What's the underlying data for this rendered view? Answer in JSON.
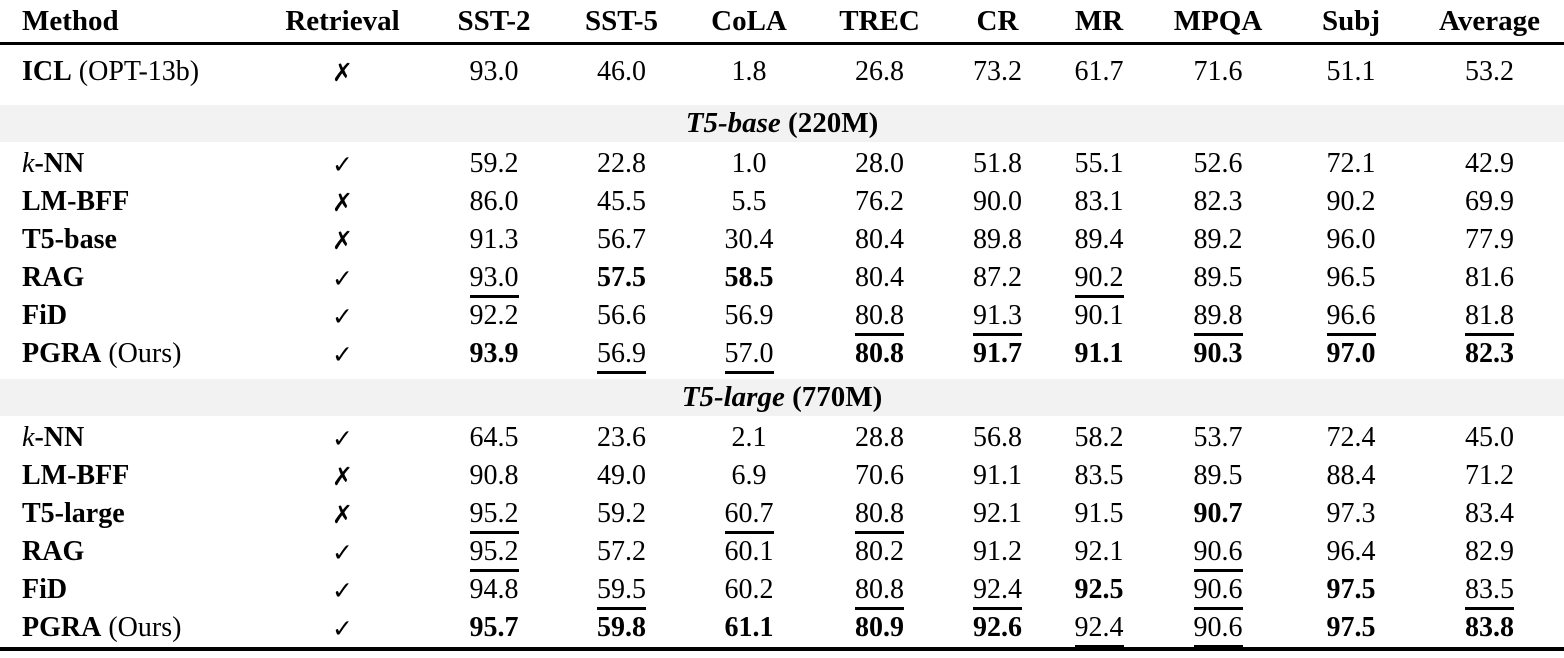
{
  "header": {
    "columns": [
      "Method",
      "Retrieval",
      "SST-2",
      "SST-5",
      "CoLA",
      "TREC",
      "CR",
      "MR",
      "MPQA",
      "Subj",
      "Average"
    ]
  },
  "symbols": {
    "retrieval_yes": "✓",
    "retrieval_no": "✗"
  },
  "colors": {
    "section_band": "#f2f2f2",
    "text": "#000000",
    "background": "#ffffff"
  },
  "rows": [
    {
      "type": "data",
      "method": [
        {
          "text": "ICL",
          "style": "bold"
        },
        {
          "text": " (OPT-13b)",
          "style": "plain"
        }
      ],
      "retrieval": "✗",
      "cells": [
        {
          "v": "93.0"
        },
        {
          "v": "46.0"
        },
        {
          "v": "1.8"
        },
        {
          "v": "26.8"
        },
        {
          "v": "73.2"
        },
        {
          "v": "61.7"
        },
        {
          "v": "71.6"
        },
        {
          "v": "51.1"
        },
        {
          "v": "53.2"
        }
      ]
    },
    {
      "type": "section",
      "parts": [
        {
          "text": "T5-base",
          "style": "bold-italic"
        },
        {
          "text": " (220M)",
          "style": "bold"
        }
      ]
    },
    {
      "type": "data",
      "method": [
        {
          "text": "k",
          "style": "italic"
        },
        {
          "text": "-NN",
          "style": "bold"
        }
      ],
      "retrieval": "✓",
      "cells": [
        {
          "v": "59.2"
        },
        {
          "v": "22.8"
        },
        {
          "v": "1.0"
        },
        {
          "v": "28.0"
        },
        {
          "v": "51.8"
        },
        {
          "v": "55.1"
        },
        {
          "v": "52.6"
        },
        {
          "v": "72.1"
        },
        {
          "v": "42.9"
        }
      ]
    },
    {
      "type": "data",
      "method": [
        {
          "text": "LM-BFF",
          "style": "bold"
        }
      ],
      "retrieval": "✗",
      "cells": [
        {
          "v": "86.0"
        },
        {
          "v": "45.5"
        },
        {
          "v": "5.5"
        },
        {
          "v": "76.2"
        },
        {
          "v": "90.0"
        },
        {
          "v": "83.1"
        },
        {
          "v": "82.3"
        },
        {
          "v": "90.2"
        },
        {
          "v": "69.9"
        }
      ]
    },
    {
      "type": "data",
      "method": [
        {
          "text": "T5-base",
          "style": "bold"
        }
      ],
      "retrieval": "✗",
      "cells": [
        {
          "v": "91.3"
        },
        {
          "v": "56.7"
        },
        {
          "v": "30.4"
        },
        {
          "v": "80.4"
        },
        {
          "v": "89.8"
        },
        {
          "v": "89.4"
        },
        {
          "v": "89.2"
        },
        {
          "v": "96.0"
        },
        {
          "v": "77.9"
        }
      ]
    },
    {
      "type": "data",
      "method": [
        {
          "text": "RAG",
          "style": "bold"
        }
      ],
      "retrieval": "✓",
      "cells": [
        {
          "v": "93.0",
          "f": "u"
        },
        {
          "v": "57.5",
          "f": "b"
        },
        {
          "v": "58.5",
          "f": "b"
        },
        {
          "v": "80.4"
        },
        {
          "v": "87.2"
        },
        {
          "v": "90.2",
          "f": "u"
        },
        {
          "v": "89.5"
        },
        {
          "v": "96.5"
        },
        {
          "v": "81.6"
        }
      ]
    },
    {
      "type": "data",
      "method": [
        {
          "text": "FiD",
          "style": "bold"
        }
      ],
      "retrieval": "✓",
      "cells": [
        {
          "v": "92.2"
        },
        {
          "v": "56.6"
        },
        {
          "v": "56.9"
        },
        {
          "v": "80.8",
          "f": "u"
        },
        {
          "v": "91.3",
          "f": "u"
        },
        {
          "v": "90.1"
        },
        {
          "v": "89.8",
          "f": "u"
        },
        {
          "v": "96.6",
          "f": "u"
        },
        {
          "v": "81.8",
          "f": "u"
        }
      ]
    },
    {
      "type": "data",
      "method": [
        {
          "text": "PGRA",
          "style": "bold"
        },
        {
          "text": " (Ours)",
          "style": "plain"
        }
      ],
      "retrieval": "✓",
      "cells": [
        {
          "v": "93.9",
          "f": "b"
        },
        {
          "v": "56.9",
          "f": "u"
        },
        {
          "v": "57.0",
          "f": "u"
        },
        {
          "v": "80.8",
          "f": "b"
        },
        {
          "v": "91.7",
          "f": "b"
        },
        {
          "v": "91.1",
          "f": "b"
        },
        {
          "v": "90.3",
          "f": "b"
        },
        {
          "v": "97.0",
          "f": "b"
        },
        {
          "v": "82.3",
          "f": "b"
        }
      ]
    },
    {
      "type": "section",
      "parts": [
        {
          "text": "T5-large",
          "style": "bold-italic"
        },
        {
          "text": " (770M)",
          "style": "bold"
        }
      ]
    },
    {
      "type": "data",
      "method": [
        {
          "text": "k",
          "style": "italic"
        },
        {
          "text": "-NN",
          "style": "bold"
        }
      ],
      "retrieval": "✓",
      "cells": [
        {
          "v": "64.5"
        },
        {
          "v": "23.6"
        },
        {
          "v": "2.1"
        },
        {
          "v": "28.8"
        },
        {
          "v": "56.8"
        },
        {
          "v": "58.2"
        },
        {
          "v": "53.7"
        },
        {
          "v": "72.4"
        },
        {
          "v": "45.0"
        }
      ]
    },
    {
      "type": "data",
      "method": [
        {
          "text": "LM-BFF",
          "style": "bold"
        }
      ],
      "retrieval": "✗",
      "cells": [
        {
          "v": "90.8"
        },
        {
          "v": "49.0"
        },
        {
          "v": "6.9"
        },
        {
          "v": "70.6"
        },
        {
          "v": "91.1"
        },
        {
          "v": "83.5"
        },
        {
          "v": "89.5"
        },
        {
          "v": "88.4"
        },
        {
          "v": "71.2"
        }
      ]
    },
    {
      "type": "data",
      "method": [
        {
          "text": "T5-large",
          "style": "bold"
        }
      ],
      "retrieval": "✗",
      "cells": [
        {
          "v": "95.2",
          "f": "u"
        },
        {
          "v": "59.2"
        },
        {
          "v": "60.7",
          "f": "u"
        },
        {
          "v": "80.8",
          "f": "u"
        },
        {
          "v": "92.1"
        },
        {
          "v": "91.5"
        },
        {
          "v": "90.7",
          "f": "b"
        },
        {
          "v": "97.3"
        },
        {
          "v": "83.4"
        }
      ]
    },
    {
      "type": "data",
      "method": [
        {
          "text": "RAG",
          "style": "bold"
        }
      ],
      "retrieval": "✓",
      "cells": [
        {
          "v": "95.2",
          "f": "u"
        },
        {
          "v": "57.2"
        },
        {
          "v": "60.1"
        },
        {
          "v": "80.2"
        },
        {
          "v": "91.2"
        },
        {
          "v": "92.1"
        },
        {
          "v": "90.6",
          "f": "u"
        },
        {
          "v": "96.4"
        },
        {
          "v": "82.9"
        }
      ]
    },
    {
      "type": "data",
      "method": [
        {
          "text": "FiD",
          "style": "bold"
        }
      ],
      "retrieval": "✓",
      "cells": [
        {
          "v": "94.8"
        },
        {
          "v": "59.5",
          "f": "u"
        },
        {
          "v": "60.2"
        },
        {
          "v": "80.8",
          "f": "u"
        },
        {
          "v": "92.4",
          "f": "u"
        },
        {
          "v": "92.5",
          "f": "b"
        },
        {
          "v": "90.6",
          "f": "u"
        },
        {
          "v": "97.5",
          "f": "b"
        },
        {
          "v": "83.5",
          "f": "u"
        }
      ]
    },
    {
      "type": "data",
      "method": [
        {
          "text": "PGRA",
          "style": "bold"
        },
        {
          "text": " (Ours)",
          "style": "plain"
        }
      ],
      "retrieval": "✓",
      "cells": [
        {
          "v": "95.7",
          "f": "b"
        },
        {
          "v": "59.8",
          "f": "b"
        },
        {
          "v": "61.1",
          "f": "b"
        },
        {
          "v": "80.9",
          "f": "b"
        },
        {
          "v": "92.6",
          "f": "b"
        },
        {
          "v": "92.4",
          "f": "u"
        },
        {
          "v": "90.6",
          "f": "u"
        },
        {
          "v": "97.5",
          "f": "b"
        },
        {
          "v": "83.8",
          "f": "b"
        }
      ]
    }
  ]
}
